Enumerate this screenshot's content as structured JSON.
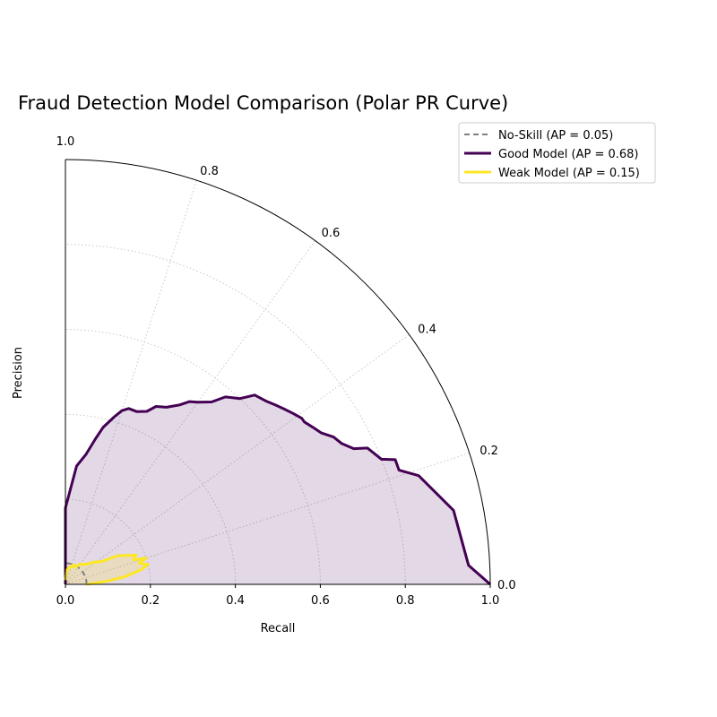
{
  "chart_data": {
    "type": "line",
    "projection": "polar-quarter",
    "title": "Fraud Detection Model Comparison (Polar PR Curve)",
    "xlabel": "Recall",
    "ylabel": "Precision",
    "angular_axis_label": "",
    "radial_range": [
      0,
      1.0
    ],
    "radial_ticks": [
      "0.0",
      "0.2",
      "0.4",
      "0.6",
      "0.8",
      "1.0"
    ],
    "angular_ticks": [
      {
        "value": 0.0,
        "label": "0.0"
      },
      {
        "value": 0.2,
        "label": "0.2"
      },
      {
        "value": 0.4,
        "label": "0.4"
      },
      {
        "value": 0.6,
        "label": "0.6"
      },
      {
        "value": 0.8,
        "label": "0.8"
      },
      {
        "value": 1.0,
        "label": "1.0"
      }
    ],
    "grid": true,
    "legend_position": "top-right",
    "series": [
      {
        "name": "No-Skill (AP = 0.05)",
        "color": "#808080",
        "style": "dashed",
        "fill": false,
        "points": [
          [
            0,
            0.05
          ],
          [
            0.1,
            0.05
          ],
          [
            0.2,
            0.05
          ],
          [
            0.3,
            0.05
          ],
          [
            0.4,
            0.05
          ],
          [
            0.5,
            0.05
          ],
          [
            0.6,
            0.05
          ],
          [
            0.7,
            0.05
          ],
          [
            0.8,
            0.05
          ],
          [
            0.9,
            0.05
          ],
          [
            1.0,
            0.05
          ]
        ]
      },
      {
        "name": "Good Model (AP = 0.68)",
        "color": "#440154",
        "style": "solid",
        "fill": true,
        "points": [
          [
            0.0,
            1.0
          ],
          [
            0.03,
            0.95
          ],
          [
            0.12,
            0.93
          ],
          [
            0.19,
            0.87
          ],
          [
            0.21,
            0.83
          ],
          [
            0.23,
            0.83
          ],
          [
            0.24,
            0.8
          ],
          [
            0.27,
            0.78
          ],
          [
            0.28,
            0.75
          ],
          [
            0.3,
            0.73
          ],
          [
            0.32,
            0.72
          ],
          [
            0.33,
            0.71
          ],
          [
            0.34,
            0.7
          ],
          [
            0.36,
            0.69
          ],
          [
            0.38,
            0.68
          ],
          [
            0.39,
            0.68
          ],
          [
            0.41,
            0.67
          ],
          [
            0.43,
            0.66
          ],
          [
            0.45,
            0.65
          ],
          [
            0.47,
            0.64
          ],
          [
            0.5,
            0.63
          ],
          [
            0.52,
            0.6
          ],
          [
            0.55,
            0.58
          ],
          [
            0.57,
            0.55
          ],
          [
            0.6,
            0.53
          ],
          [
            0.62,
            0.52
          ],
          [
            0.64,
            0.5
          ],
          [
            0.67,
            0.48
          ],
          [
            0.7,
            0.47
          ],
          [
            0.72,
            0.45
          ],
          [
            0.75,
            0.44
          ],
          [
            0.78,
            0.44
          ],
          [
            0.8,
            0.43
          ],
          [
            0.82,
            0.41
          ],
          [
            0.85,
            0.38
          ],
          [
            0.87,
            0.35
          ],
          [
            0.9,
            0.31
          ],
          [
            0.94,
            0.28
          ],
          [
            1.0,
            0.18
          ],
          [
            1.0,
            0.0
          ]
        ]
      },
      {
        "name": "Weak Model (AP = 0.15)",
        "color": "#fde725",
        "style": "solid",
        "fill": true,
        "points": [
          [
            0.0,
            0.05
          ],
          [
            0.05,
            0.1
          ],
          [
            0.08,
            0.14
          ],
          [
            0.12,
            0.18
          ],
          [
            0.15,
            0.2
          ],
          [
            0.18,
            0.18
          ],
          [
            0.2,
            0.2
          ],
          [
            0.22,
            0.17
          ],
          [
            0.25,
            0.18
          ],
          [
            0.28,
            0.16
          ],
          [
            0.32,
            0.14
          ],
          [
            0.36,
            0.1
          ],
          [
            0.4,
            0.09
          ],
          [
            0.44,
            0.08
          ],
          [
            0.48,
            0.07
          ],
          [
            0.52,
            0.065
          ],
          [
            0.56,
            0.06
          ],
          [
            0.6,
            0.06
          ],
          [
            0.64,
            0.05
          ],
          [
            0.68,
            0.05
          ],
          [
            0.72,
            0.045
          ],
          [
            0.76,
            0.05
          ],
          [
            0.8,
            0.045
          ],
          [
            0.84,
            0.04
          ],
          [
            0.88,
            0.04
          ],
          [
            0.92,
            0.035
          ],
          [
            0.96,
            0.03
          ],
          [
            1.0,
            0.01
          ]
        ]
      }
    ]
  }
}
